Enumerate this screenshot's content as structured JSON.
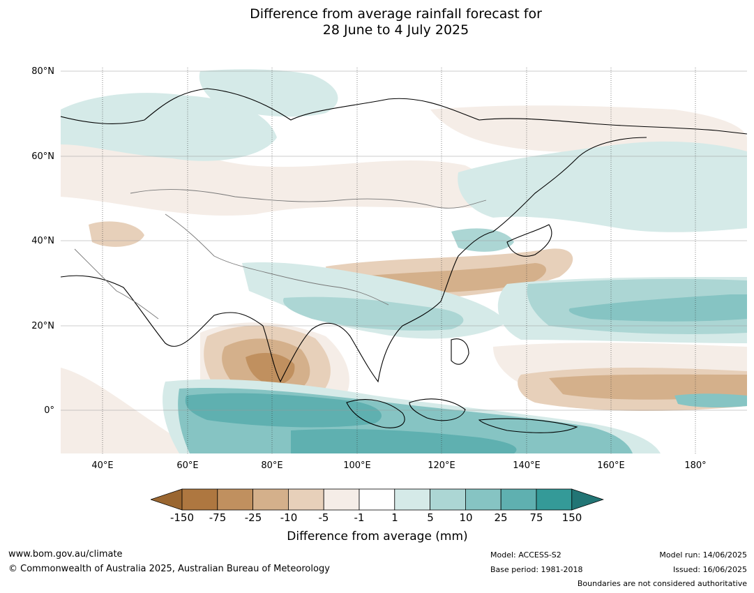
{
  "title": {
    "line1": "Difference from average rainfall forecast for",
    "line2": "28 June to 4 July 2025"
  },
  "map": {
    "lat_labels": [
      "80°N",
      "60°N",
      "40°N",
      "20°N",
      "0°"
    ],
    "lon_labels": [
      "40°E",
      "60°E",
      "80°E",
      "100°E",
      "120°E",
      "140°E",
      "160°E",
      "180°"
    ],
    "region": "Asia and western Pacific"
  },
  "legend": {
    "ticks": [
      "-150",
      "-75",
      "-25",
      "-10",
      "-5",
      "-1",
      "1",
      "5",
      "10",
      "25",
      "75",
      "150"
    ],
    "colors": [
      "#ae7740",
      "#c0905f",
      "#d4b08b",
      "#e7d0ba",
      "#f5ede7",
      "#ffffff",
      "#d5eae8",
      "#acd6d4",
      "#86c4c3",
      "#5fb0b0",
      "#349a98",
      "#227575"
    ],
    "label": "Difference from average (mm)"
  },
  "footer": {
    "website": "www.bom.gov.au/climate",
    "copyright": "© Commonwealth of Australia 2025, Australian Bureau of Meteorology",
    "model": "Model: ACCESS-S2",
    "base_period": "Base period: 1981-2018",
    "model_run": "Model run: 14/06/2025",
    "issued": "Issued: 16/06/2025",
    "disclaimer": "Boundaries are not considered authoritative"
  }
}
